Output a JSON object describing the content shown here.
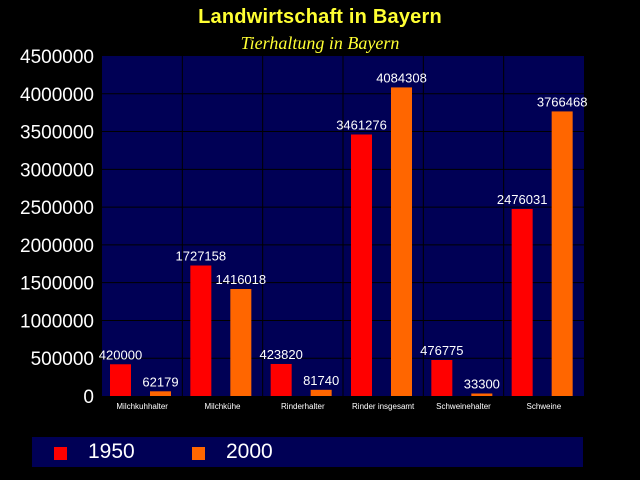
{
  "title": "Landwirtschaft in Bayern",
  "subtitle": "Tierhaltung in Bayern",
  "colors": {
    "background": "#000000",
    "plot_area": "#000055",
    "title": "#FFFF33",
    "grid": "#000000",
    "series_1950": "#FF0000",
    "series_2000": "#FF6600"
  },
  "chart_data": {
    "type": "bar",
    "categories": [
      "Milchkuhhalter",
      "Milchkühe",
      "Rinderhalter",
      "Rinder insgesamt",
      "Schweinehalter",
      "Schweine"
    ],
    "series": [
      {
        "name": "1950",
        "values": [
          420000,
          1727158,
          423820,
          3461276,
          476775,
          2476031
        ]
      },
      {
        "name": "2000",
        "values": [
          62179,
          1416018,
          81740,
          4084308,
          33300,
          3766468
        ]
      }
    ],
    "yticks": [
      "0",
      "500000",
      "1000000",
      "1500000",
      "2000000",
      "2500000",
      "3000000",
      "3500000",
      "4000000",
      "4500000"
    ],
    "ylim": [
      0,
      4500000
    ],
    "grid": true,
    "legend": "bottom",
    "data_labels": true
  }
}
